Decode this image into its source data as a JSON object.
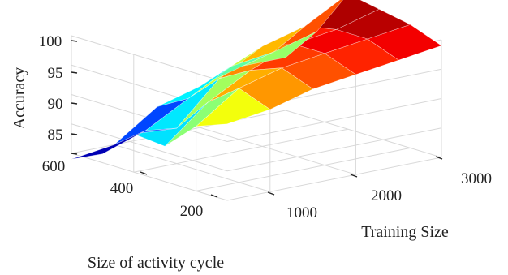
{
  "chart_data": {
    "type": "surface",
    "title": "",
    "zlabel": "Accuracy",
    "xlabel": "Training Size",
    "ylabel": "Size of activity cycle",
    "zlim": [
      80,
      100
    ],
    "z_ticks": [
      "100",
      "95",
      "90",
      "85"
    ],
    "x_ticks": [
      "1000",
      "2000",
      "3000"
    ],
    "y_ticks": [
      "600",
      "400",
      "200"
    ],
    "grid": true,
    "colormap": "jet",
    "x": [
      500,
      1000,
      1500,
      2000,
      2500,
      3000
    ],
    "y": [
      100,
      200,
      300,
      400,
      500,
      600
    ],
    "z": [
      [
        93,
        91,
        86,
        86.5,
        81.5,
        79
      ],
      [
        94,
        96,
        92,
        86,
        84,
        80
      ],
      [
        96,
        98,
        96,
        93,
        88,
        85
      ],
      [
        97,
        99,
        99,
        97,
        92,
        87
      ],
      [
        98,
        100,
        100,
        99,
        93,
        89
      ],
      [
        99,
        101,
        102,
        103,
        95,
        89
      ]
    ]
  }
}
